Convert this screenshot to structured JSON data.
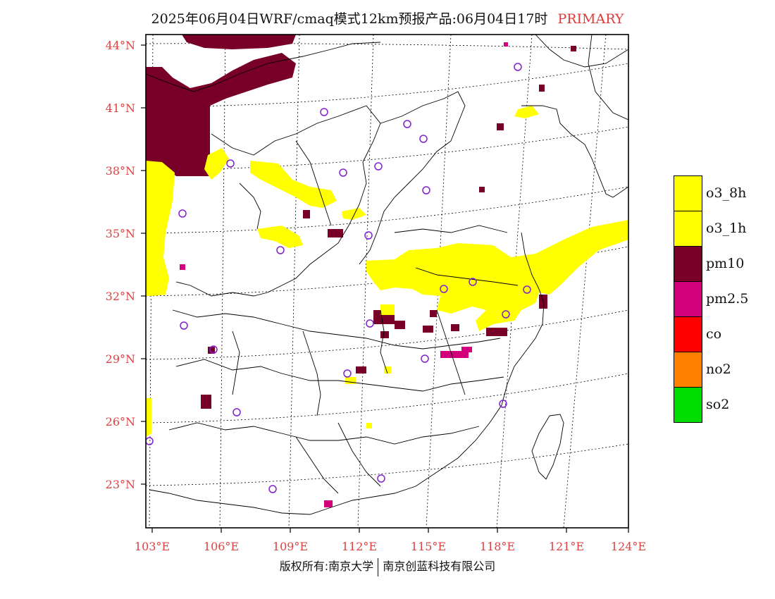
{
  "title": "2025年06月04日WRF/cmaq模式12km预报产品:06月04日17时",
  "badge": "PRIMARY",
  "lat_labels": [
    "44°N",
    "41°N",
    "38°N",
    "35°N",
    "32°N",
    "29°N",
    "26°N",
    "23°N"
  ],
  "lon_labels": [
    "103°E",
    "106°E",
    "109°E",
    "112°E",
    "115°E",
    "118°E",
    "121°E",
    "124°E"
  ],
  "legend": [
    {
      "label": "o3_8h",
      "color": "#ffff00"
    },
    {
      "label": "o3_1h",
      "color": "#ffff00"
    },
    {
      "label": "pm10",
      "color": "#780028"
    },
    {
      "label": "pm2.5",
      "color": "#d2007a"
    },
    {
      "label": "co",
      "color": "#ff0000"
    },
    {
      "label": "no2",
      "color": "#ff8000"
    },
    {
      "label": "so2",
      "color": "#00dc00"
    }
  ],
  "footer": {
    "left": "版权所有:南京大学",
    "right": "南京创蓝科技有限公司"
  }
}
